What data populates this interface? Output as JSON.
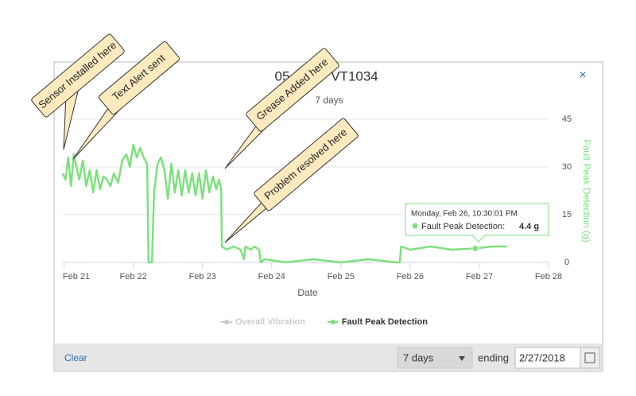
{
  "chart_data": {
    "type": "line",
    "title_parts": [
      "05",
      "VT1034"
    ],
    "subtitle": "7 days",
    "xlabel": "Date",
    "ylabel": "Fault Peak Detection (g)",
    "xlim": [
      20.97,
      28
    ],
    "ylim": [
      0,
      45
    ],
    "xticks": [
      {
        "value": 21,
        "label": "Feb 21"
      },
      {
        "value": 22,
        "label": "Feb 22"
      },
      {
        "value": 23,
        "label": "Feb 23"
      },
      {
        "value": 24,
        "label": "Feb 24"
      },
      {
        "value": 25,
        "label": "Feb 25"
      },
      {
        "value": 26,
        "label": "Feb 26"
      },
      {
        "value": 27,
        "label": "Feb 27"
      },
      {
        "value": 28,
        "label": "Feb 28"
      }
    ],
    "yticks": [
      0,
      15,
      30,
      45
    ],
    "grid": true,
    "x": [
      20.98,
      21.02,
      21.06,
      21.1,
      21.14,
      21.18,
      21.22,
      21.27,
      21.32,
      21.37,
      21.42,
      21.47,
      21.52,
      21.57,
      21.62,
      21.67,
      21.72,
      21.78,
      21.84,
      21.9,
      21.95,
      22.0,
      22.05,
      22.1,
      22.15,
      22.2,
      22.22,
      22.27,
      22.3,
      22.35,
      22.4,
      22.45,
      22.5,
      22.55,
      22.6,
      22.65,
      22.7,
      22.75,
      22.8,
      22.85,
      22.9,
      22.95,
      23.0,
      23.05,
      23.1,
      23.15,
      23.2,
      23.24,
      23.27,
      23.28,
      23.35,
      23.45,
      23.55,
      23.6,
      23.62,
      23.7,
      23.75,
      23.82,
      23.84,
      23.9,
      24.2,
      24.6,
      25.0,
      25.4,
      25.8,
      25.85,
      25.87,
      26.0,
      26.3,
      26.6,
      26.94,
      27.2,
      27.4
    ],
    "series": [
      {
        "name": "Overall Vibration",
        "color": "#cccccc",
        "visible": false,
        "values": [
          null,
          null,
          null,
          null,
          null,
          null,
          null,
          null,
          null,
          null,
          null,
          null,
          null,
          null,
          null,
          null,
          null,
          null,
          null,
          null,
          null,
          null,
          null,
          null,
          null,
          null,
          null,
          null,
          null,
          null,
          null,
          null,
          null,
          null,
          null,
          null,
          null,
          null,
          null,
          null,
          null,
          null,
          null,
          null,
          null,
          null,
          null,
          null,
          null,
          null,
          null,
          null,
          null,
          null,
          null,
          null,
          null,
          null,
          null,
          null,
          null,
          null,
          null,
          null,
          null,
          null,
          null,
          null,
          null,
          null,
          null,
          null,
          null
        ]
      },
      {
        "name": "Fault Peak Detection",
        "color": "#7ee07e",
        "visible": true,
        "values": [
          28,
          26,
          33,
          24,
          34,
          30,
          26,
          32,
          24,
          29,
          22,
          29,
          23,
          27,
          26,
          24,
          28,
          25,
          32,
          34,
          30,
          37,
          33,
          36,
          33,
          31,
          0,
          0,
          22,
          31,
          33,
          29,
          20,
          31,
          22,
          29,
          21,
          29,
          22,
          28,
          21,
          28,
          20,
          29,
          22,
          27,
          23,
          26,
          23,
          5,
          4,
          5,
          4,
          1,
          5,
          4,
          5,
          4,
          0,
          1,
          0,
          1,
          0,
          1,
          0,
          0,
          5,
          4,
          5,
          4,
          4.4,
          5,
          5
        ]
      }
    ],
    "tooltip": {
      "time": "Monday, Feb 26, 10:30:01 PM",
      "label": "Fault Peak Detection:",
      "index": 70,
      "value_label": "4.4 g"
    },
    "annotations": [
      "Sensor Installed here",
      "Text Alert sent",
      "Grease Added here",
      "Problem resolved here"
    ]
  },
  "footer": {
    "clear": "Clear",
    "range": "7 days",
    "ending": "ending",
    "date": "2/27/2018"
  },
  "close": "×"
}
